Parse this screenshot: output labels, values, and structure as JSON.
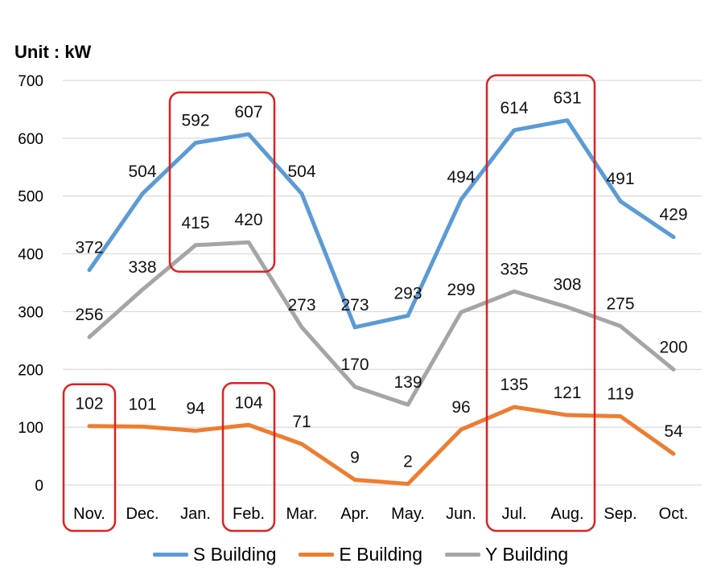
{
  "unit_label": "Unit : kW",
  "chart_data": {
    "type": "line",
    "categories": [
      "Nov.",
      "Dec.",
      "Jan.",
      "Feb.",
      "Mar.",
      "Apr.",
      "May.",
      "Jun.",
      "Jul.",
      "Aug.",
      "Sep.",
      "Oct."
    ],
    "ylim": [
      0,
      700
    ],
    "yticks": [
      0,
      100,
      200,
      300,
      400,
      500,
      600,
      700
    ],
    "grid": true,
    "legend_position": "bottom",
    "series": [
      {
        "name": "S Building",
        "color": "#5B9BD5",
        "values": [
          372,
          504,
          592,
          607,
          504,
          273,
          293,
          494,
          614,
          631,
          491,
          429
        ]
      },
      {
        "name": "E Building",
        "color": "#ED7D31",
        "values": [
          102,
          101,
          94,
          104,
          71,
          9,
          2,
          96,
          135,
          121,
          119,
          54
        ]
      },
      {
        "name": "Y Building",
        "color": "#A5A5A5",
        "values": [
          256,
          338,
          415,
          420,
          273,
          170,
          139,
          299,
          335,
          308,
          275,
          200
        ]
      }
    ],
    "highlight_color": "#E02020",
    "highlights": [
      {
        "from": "Jan.",
        "to": "Feb.",
        "series": [
          "S Building",
          "Y Building"
        ]
      },
      {
        "from": "Nov.",
        "to": "Nov.",
        "series": [
          "E Building"
        ]
      },
      {
        "from": "Feb.",
        "to": "Feb.",
        "series": [
          "E Building"
        ]
      },
      {
        "from": "Jul.",
        "to": "Aug.",
        "series": [
          "S Building",
          "Y Building",
          "E Building"
        ]
      }
    ]
  }
}
